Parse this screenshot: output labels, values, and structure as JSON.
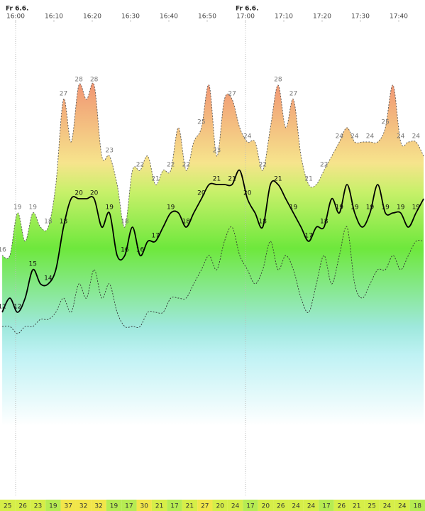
{
  "chart_data": {
    "type": "line",
    "day_labels": [
      {
        "text": "Fr 6.6.",
        "x": 0
      },
      {
        "text": "Fr 6.6.",
        "x": 60
      }
    ],
    "x": [
      -3.5,
      -1.5,
      0.5,
      2.5,
      4.5,
      6.5,
      8.5,
      10.5,
      12.5,
      14.5,
      16.5,
      18.5,
      20.5,
      22.5,
      24.5,
      26.5,
      28.5,
      30.5,
      32.5,
      34.5,
      36.5,
      38.5,
      40.5,
      42.5,
      44.5,
      46.5,
      48.5,
      50.5,
      52.5,
      54.5,
      56.5,
      58.5,
      60.5,
      62.5,
      64.5,
      66.5,
      68.5,
      70.5,
      72.5,
      74.5,
      76.5,
      78.5,
      80.5,
      82.5,
      84.5,
      86.5,
      88.5,
      90.5,
      92.5,
      94.5,
      96.5,
      98.5,
      100.5,
      102.5,
      104.5,
      106.5
    ],
    "series": [
      {
        "color": "#555555",
        "values": [
          16,
          16,
          19,
          17,
          19,
          18,
          18,
          21,
          27,
          24,
          28,
          27,
          28,
          23,
          23,
          21,
          18,
          22,
          22,
          23,
          21,
          22,
          22,
          25,
          22,
          24,
          25,
          28,
          23,
          27,
          27,
          25,
          24,
          24,
          22,
          25,
          28,
          25,
          27,
          23,
          21,
          21,
          22,
          23,
          24,
          25,
          24,
          24,
          24,
          24,
          25,
          28,
          24,
          24,
          24,
          23
        ]
      },
      {
        "color": "#000000",
        "values": [
          12,
          13,
          12,
          13,
          15,
          14,
          14,
          15,
          18,
          20,
          20,
          20,
          20,
          18,
          19,
          16,
          16,
          18,
          16,
          17,
          17,
          18,
          19,
          19,
          18,
          19,
          20,
          21,
          21,
          21,
          21,
          22,
          20,
          19,
          18,
          21,
          21,
          20,
          19,
          18,
          17,
          18,
          18,
          20,
          19,
          21,
          19,
          18,
          19,
          21,
          19,
          19,
          19,
          18,
          19,
          20
        ]
      },
      {
        "color": "#333333",
        "values": [
          11,
          11,
          10.5,
          11,
          11,
          11.5,
          11.5,
          12,
          13,
          12,
          14,
          13,
          15,
          13,
          14,
          12,
          11,
          11,
          11,
          12,
          12,
          12,
          13,
          13,
          13,
          14,
          15,
          16,
          15,
          17,
          18,
          16,
          15,
          14,
          15,
          17,
          15,
          16,
          15,
          13,
          12,
          14,
          16,
          14,
          16,
          18,
          14,
          13,
          14,
          15,
          15,
          16,
          15,
          16,
          17,
          17
        ]
      }
    ],
    "xlim": [
      -4.07,
      106.85
    ],
    "ylim": [
      0,
      34
    ],
    "xticks": [
      {
        "value": 0,
        "label": "16:00"
      },
      {
        "value": 10,
        "label": "16:10"
      },
      {
        "value": 20,
        "label": "16:20"
      },
      {
        "value": 30,
        "label": "16:30"
      },
      {
        "value": 40,
        "label": "16:40"
      },
      {
        "value": 50,
        "label": "16:50"
      },
      {
        "value": 60,
        "label": "17:00"
      },
      {
        "value": 70,
        "label": "17:10"
      },
      {
        "value": 80,
        "label": "17:20"
      },
      {
        "value": 90,
        "label": "17:30"
      },
      {
        "value": 100,
        "label": "17:40"
      }
    ],
    "fill_gradient": [
      "#f08a70",
      "#f6e48c",
      "#c8f06a",
      "#6ee83c",
      "#9ee8dc",
      "#bff2f4",
      "#ffffff"
    ],
    "strip_values": [
      25,
      26,
      23,
      19,
      37,
      32,
      32,
      19,
      17,
      30,
      21,
      17,
      21,
      27,
      20,
      24,
      17,
      20,
      26,
      24,
      24,
      17,
      26,
      21,
      25,
      24,
      24,
      18
    ]
  }
}
